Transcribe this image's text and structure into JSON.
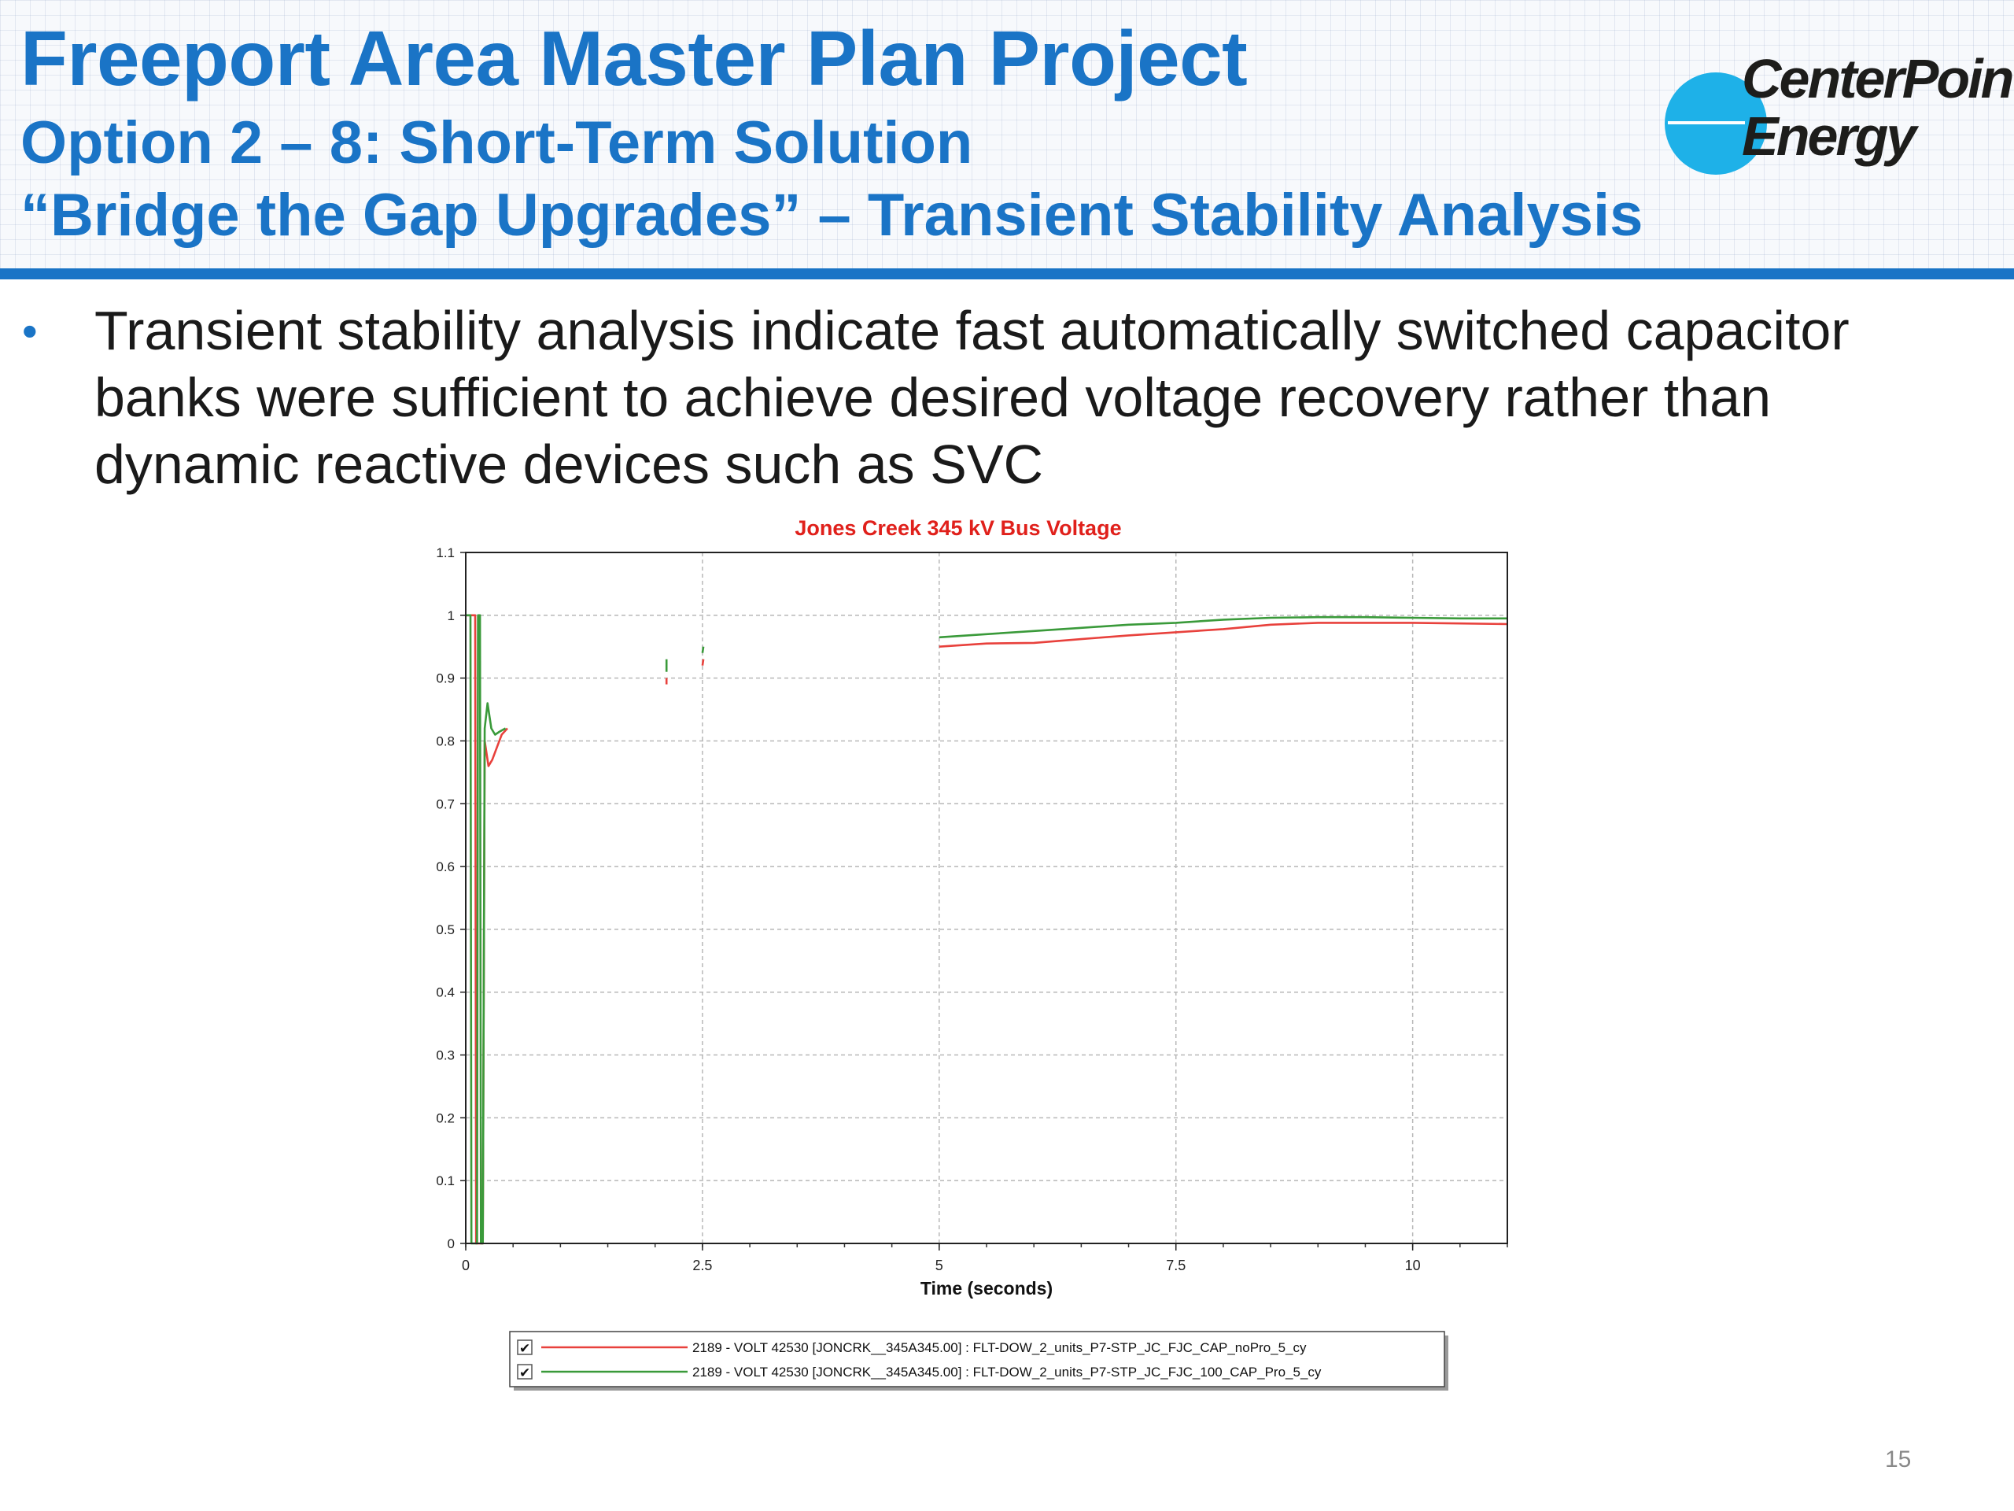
{
  "slide": {
    "title": "Freeport Area Master Plan Project",
    "subtitle1": "Option 2 – 8: Short-Term Solution",
    "subtitle2": "“Bridge the Gap Upgrades” –  Transient Stability Analysis",
    "logo": {
      "line1": "CenterPoint.",
      "line2": "Energy",
      "circle_color": "#1eb1e8"
    },
    "bullet": "Transient stability analysis indicate fast automatically switched capacitor banks were sufficient to achieve desired voltage recovery rather than dynamic reactive devices such as SVC",
    "page_number": "15",
    "accent_color": "#1a74c6"
  },
  "chart_data": {
    "type": "line",
    "title": "Jones Creek 345 kV Bus Voltage",
    "xlabel": "Time (seconds)",
    "ylabel": "",
    "xlim": [
      0,
      11
    ],
    "ylim": [
      0,
      1.1
    ],
    "xticks": [
      0,
      2.5,
      5,
      7.5,
      10
    ],
    "xtick_labels": [
      "0",
      "2.5",
      "5",
      "7.5",
      "10"
    ],
    "yticks": [
      0,
      0.1,
      0.2,
      0.3,
      0.4,
      0.5,
      0.6,
      0.7,
      0.8,
      0.9,
      1,
      1.1
    ],
    "ytick_labels": [
      "0",
      "0.1",
      "0.2",
      "0.3",
      "0.4",
      "0.5",
      "0.6",
      "0.7",
      "0.8",
      "0.9",
      "1",
      "1.1"
    ],
    "grid": true,
    "legend_position": "bottom",
    "series": [
      {
        "name": "2189 - VOLT  42530 [JONCRK__345A345.00] : FLT-DOW_2_units_P7-STP_JC_FJC_CAP_noPro_5_cy",
        "color": "#e8413c",
        "segments": [
          [
            [
              0,
              1.0
            ],
            [
              0.1,
              1.0
            ],
            [
              0.11,
              0.0
            ],
            [
              0.18,
              0.0
            ],
            [
              0.2,
              0.8
            ],
            [
              0.24,
              0.76
            ],
            [
              0.28,
              0.77
            ],
            [
              0.33,
              0.79
            ],
            [
              0.38,
              0.81
            ],
            [
              0.44,
              0.82
            ]
          ],
          [
            [
              2.12,
              0.9
            ],
            [
              2.12,
              0.89
            ]
          ],
          [
            [
              2.5,
              0.92
            ],
            [
              2.51,
              0.93
            ]
          ],
          [
            [
              5.0,
              0.95
            ],
            [
              5.5,
              0.955
            ],
            [
              6.0,
              0.956
            ],
            [
              6.5,
              0.962
            ],
            [
              7.0,
              0.968
            ],
            [
              7.5,
              0.973
            ],
            [
              8.0,
              0.978
            ],
            [
              8.5,
              0.985
            ],
            [
              9.0,
              0.988
            ],
            [
              9.5,
              0.988
            ],
            [
              10.0,
              0.988
            ],
            [
              10.5,
              0.987
            ],
            [
              11.0,
              0.986
            ]
          ]
        ]
      },
      {
        "name": "2189 - VOLT  42530 [JONCRK__345A345.00] : FLT-DOW_2_units_P7-STP_JC_FJC_100_CAP_Pro_5_cy",
        "color": "#3a9a3a",
        "segments": [
          [
            [
              0,
              1.0
            ],
            [
              0.05,
              1.0
            ],
            [
              0.06,
              0.0
            ],
            [
              0.12,
              0.0
            ],
            [
              0.13,
              1.0
            ],
            [
              0.15,
              1.0
            ],
            [
              0.16,
              0.0
            ],
            [
              0.18,
              0.0
            ],
            [
              0.2,
              0.82
            ],
            [
              0.23,
              0.86
            ],
            [
              0.27,
              0.82
            ],
            [
              0.31,
              0.81
            ],
            [
              0.36,
              0.815
            ],
            [
              0.42,
              0.82
            ]
          ],
          [
            [
              2.12,
              0.93
            ],
            [
              2.12,
              0.91
            ]
          ],
          [
            [
              2.5,
              0.94
            ],
            [
              2.51,
              0.95
            ]
          ],
          [
            [
              5.0,
              0.965
            ],
            [
              5.5,
              0.97
            ],
            [
              6.0,
              0.975
            ],
            [
              6.5,
              0.98
            ],
            [
              7.0,
              0.985
            ],
            [
              7.5,
              0.988
            ],
            [
              8.0,
              0.993
            ],
            [
              8.5,
              0.996
            ],
            [
              9.0,
              0.997
            ],
            [
              9.5,
              0.997
            ],
            [
              10.0,
              0.996
            ],
            [
              10.5,
              0.995
            ],
            [
              11.0,
              0.995
            ]
          ]
        ]
      }
    ]
  }
}
